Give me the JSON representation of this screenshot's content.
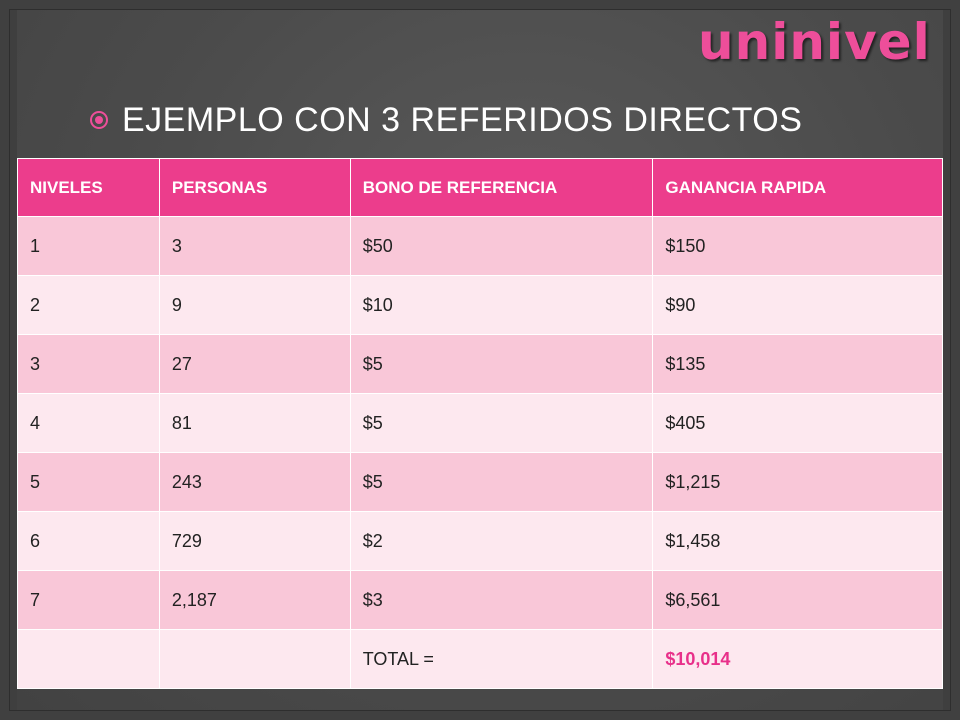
{
  "title": "uninivel",
  "bullet": "EJEMPLO CON 3 REFERIDOS DIRECTOS",
  "colors": {
    "accent": "#ee4e9a",
    "header_bg": "#ec3d8c",
    "row_odd": "#f9c7d8",
    "row_even": "#fde8ef"
  },
  "table": {
    "headers": [
      "NIVELES",
      "PERSONAS",
      "BONO DE REFERENCIA",
      "GANANCIA RAPIDA"
    ],
    "rows": [
      [
        "1",
        "3",
        "$50",
        "$150"
      ],
      [
        "2",
        "9",
        "$10",
        "$90"
      ],
      [
        "3",
        "27",
        "$5",
        "$135"
      ],
      [
        "4",
        "81",
        "$5",
        "$405"
      ],
      [
        "5",
        "243",
        "$5",
        "$1,215"
      ],
      [
        "6",
        "729",
        "$2",
        "$1,458"
      ],
      [
        "7",
        "2,187",
        "$3",
        "$6,561"
      ]
    ],
    "total_label": "TOTAL =",
    "total_value": "$10,014"
  }
}
